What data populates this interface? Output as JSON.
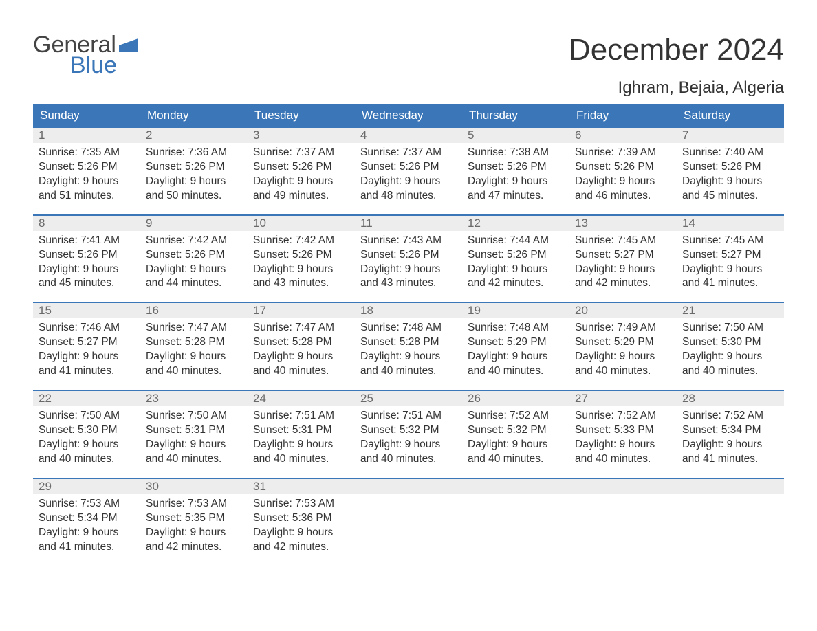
{
  "logo": {
    "word1": "General",
    "word2": "Blue"
  },
  "title": "December 2024",
  "location": "Ighram, Bejaia, Algeria",
  "colors": {
    "header_bg": "#3a76b8",
    "header_text": "#ffffff",
    "daynum_bg": "#ededed",
    "daynum_text": "#6a6a6a",
    "body_text": "#333333",
    "page_bg": "#ffffff"
  },
  "fonts": {
    "title_pt": 44,
    "location_pt": 24,
    "dow_pt": 17,
    "daynum_pt": 17,
    "body_pt": 15.5
  },
  "dow": [
    "Sunday",
    "Monday",
    "Tuesday",
    "Wednesday",
    "Thursday",
    "Friday",
    "Saturday"
  ],
  "labels": {
    "sunrise": "Sunrise: ",
    "sunset": "Sunset: ",
    "daylight": "Daylight: "
  },
  "weeks": [
    [
      {
        "n": "1",
        "sunrise": "7:35 AM",
        "sunset": "5:26 PM",
        "daylight": "9 hours and 51 minutes."
      },
      {
        "n": "2",
        "sunrise": "7:36 AM",
        "sunset": "5:26 PM",
        "daylight": "9 hours and 50 minutes."
      },
      {
        "n": "3",
        "sunrise": "7:37 AM",
        "sunset": "5:26 PM",
        "daylight": "9 hours and 49 minutes."
      },
      {
        "n": "4",
        "sunrise": "7:37 AM",
        "sunset": "5:26 PM",
        "daylight": "9 hours and 48 minutes."
      },
      {
        "n": "5",
        "sunrise": "7:38 AM",
        "sunset": "5:26 PM",
        "daylight": "9 hours and 47 minutes."
      },
      {
        "n": "6",
        "sunrise": "7:39 AM",
        "sunset": "5:26 PM",
        "daylight": "9 hours and 46 minutes."
      },
      {
        "n": "7",
        "sunrise": "7:40 AM",
        "sunset": "5:26 PM",
        "daylight": "9 hours and 45 minutes."
      }
    ],
    [
      {
        "n": "8",
        "sunrise": "7:41 AM",
        "sunset": "5:26 PM",
        "daylight": "9 hours and 45 minutes."
      },
      {
        "n": "9",
        "sunrise": "7:42 AM",
        "sunset": "5:26 PM",
        "daylight": "9 hours and 44 minutes."
      },
      {
        "n": "10",
        "sunrise": "7:42 AM",
        "sunset": "5:26 PM",
        "daylight": "9 hours and 43 minutes."
      },
      {
        "n": "11",
        "sunrise": "7:43 AM",
        "sunset": "5:26 PM",
        "daylight": "9 hours and 43 minutes."
      },
      {
        "n": "12",
        "sunrise": "7:44 AM",
        "sunset": "5:26 PM",
        "daylight": "9 hours and 42 minutes."
      },
      {
        "n": "13",
        "sunrise": "7:45 AM",
        "sunset": "5:27 PM",
        "daylight": "9 hours and 42 minutes."
      },
      {
        "n": "14",
        "sunrise": "7:45 AM",
        "sunset": "5:27 PM",
        "daylight": "9 hours and 41 minutes."
      }
    ],
    [
      {
        "n": "15",
        "sunrise": "7:46 AM",
        "sunset": "5:27 PM",
        "daylight": "9 hours and 41 minutes."
      },
      {
        "n": "16",
        "sunrise": "7:47 AM",
        "sunset": "5:28 PM",
        "daylight": "9 hours and 40 minutes."
      },
      {
        "n": "17",
        "sunrise": "7:47 AM",
        "sunset": "5:28 PM",
        "daylight": "9 hours and 40 minutes."
      },
      {
        "n": "18",
        "sunrise": "7:48 AM",
        "sunset": "5:28 PM",
        "daylight": "9 hours and 40 minutes."
      },
      {
        "n": "19",
        "sunrise": "7:48 AM",
        "sunset": "5:29 PM",
        "daylight": "9 hours and 40 minutes."
      },
      {
        "n": "20",
        "sunrise": "7:49 AM",
        "sunset": "5:29 PM",
        "daylight": "9 hours and 40 minutes."
      },
      {
        "n": "21",
        "sunrise": "7:50 AM",
        "sunset": "5:30 PM",
        "daylight": "9 hours and 40 minutes."
      }
    ],
    [
      {
        "n": "22",
        "sunrise": "7:50 AM",
        "sunset": "5:30 PM",
        "daylight": "9 hours and 40 minutes."
      },
      {
        "n": "23",
        "sunrise": "7:50 AM",
        "sunset": "5:31 PM",
        "daylight": "9 hours and 40 minutes."
      },
      {
        "n": "24",
        "sunrise": "7:51 AM",
        "sunset": "5:31 PM",
        "daylight": "9 hours and 40 minutes."
      },
      {
        "n": "25",
        "sunrise": "7:51 AM",
        "sunset": "5:32 PM",
        "daylight": "9 hours and 40 minutes."
      },
      {
        "n": "26",
        "sunrise": "7:52 AM",
        "sunset": "5:32 PM",
        "daylight": "9 hours and 40 minutes."
      },
      {
        "n": "27",
        "sunrise": "7:52 AM",
        "sunset": "5:33 PM",
        "daylight": "9 hours and 40 minutes."
      },
      {
        "n": "28",
        "sunrise": "7:52 AM",
        "sunset": "5:34 PM",
        "daylight": "9 hours and 41 minutes."
      }
    ],
    [
      {
        "n": "29",
        "sunrise": "7:53 AM",
        "sunset": "5:34 PM",
        "daylight": "9 hours and 41 minutes."
      },
      {
        "n": "30",
        "sunrise": "7:53 AM",
        "sunset": "5:35 PM",
        "daylight": "9 hours and 42 minutes."
      },
      {
        "n": "31",
        "sunrise": "7:53 AM",
        "sunset": "5:36 PM",
        "daylight": "9 hours and 42 minutes."
      },
      {
        "n": "",
        "empty": true
      },
      {
        "n": "",
        "empty": true
      },
      {
        "n": "",
        "empty": true
      },
      {
        "n": "",
        "empty": true
      }
    ]
  ]
}
